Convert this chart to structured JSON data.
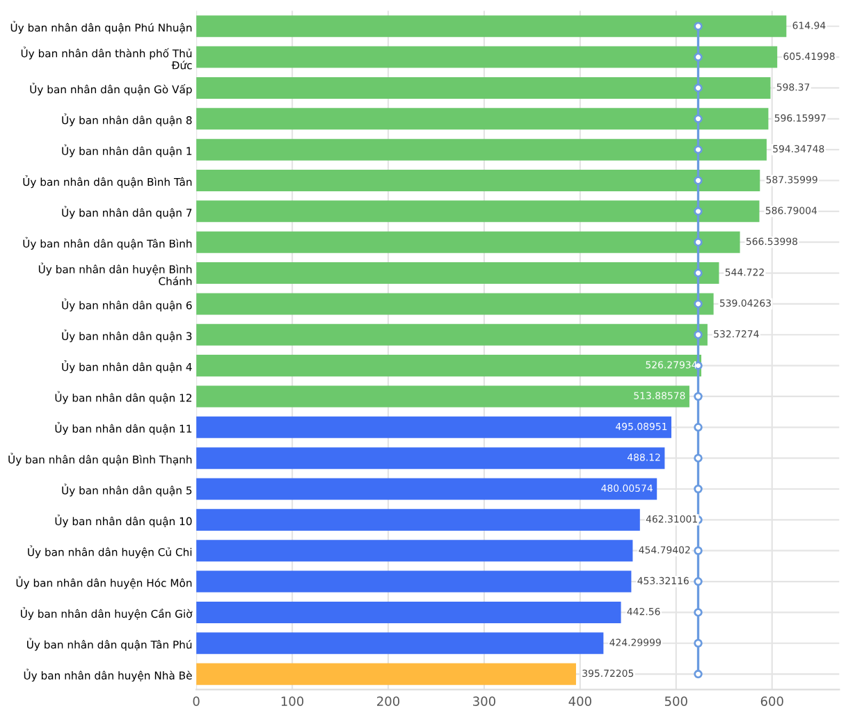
{
  "chart_data": {
    "type": "bar",
    "orientation": "horizontal",
    "categories": [
      "Ủy ban nhân dân quận Phú Nhuận",
      "Ủy ban nhân dân thành phố Thủ Đức",
      "Ủy ban nhân dân quận Gò Vấp",
      "Ủy ban nhân dân quận 8",
      "Ủy ban nhân dân quận 1",
      "Ủy ban nhân dân quận Bình Tân",
      "Ủy ban nhân dân quận 7",
      "Ủy ban nhân dân quận Tân Bình",
      "Ủy ban nhân dân huyện Bình Chánh",
      "Ủy ban nhân dân quận 6",
      "Ủy ban nhân dân quận 3",
      "Ủy ban nhân dân quận 4",
      "Ủy ban nhân dân quận 12",
      "Ủy ban nhân dân quận 11",
      "Ủy ban nhân dân quận Bình Thạnh",
      "Ủy ban nhân dân quận 5",
      "Ủy ban nhân dân quận 10",
      "Ủy ban nhân dân huyện Củ Chi",
      "Ủy ban nhân dân huyện Hóc Môn",
      "Ủy ban nhân dân huyện Cần Giờ",
      "Ủy ban nhân dân quận Tân Phú",
      "Ủy ban nhân dân huyện Nhà Bè"
    ],
    "series": [
      {
        "values": [
          614.94,
          605.41998,
          598.37,
          596.15997,
          594.34748,
          587.35999,
          586.79004,
          566.53998,
          544.722,
          539.04263,
          532.7274,
          526.27934,
          513.88578,
          495.08951,
          488.12,
          480.00574,
          462.31001,
          454.79402,
          453.32116,
          442.56,
          424.29999,
          395.72205
        ],
        "colors": [
          "#6cc86c",
          "#6cc86c",
          "#6cc86c",
          "#6cc86c",
          "#6cc86c",
          "#6cc86c",
          "#6cc86c",
          "#6cc86c",
          "#6cc86c",
          "#6cc86c",
          "#6cc86c",
          "#6cc86c",
          "#6cc86c",
          "#3e6ef5",
          "#3e6ef5",
          "#3e6ef5",
          "#3e6ef5",
          "#3e6ef5",
          "#3e6ef5",
          "#3e6ef5",
          "#3e6ef5",
          "#ffb93e"
        ],
        "value_labels": [
          "614.94",
          "605.41998",
          "598.37",
          "596.15997",
          "594.34748",
          "587.35999",
          "586.79004",
          "566.53998",
          "544.722",
          "539.04263",
          "532.7274",
          "526.27934",
          "513.88578",
          "495.08951",
          "488.12",
          "480.00574",
          "462.31001",
          "454.79402",
          "453.32116",
          "442.56",
          "424.29999",
          "395.72205"
        ]
      },
      {
        "type": "line",
        "color": "#6a9be0",
        "marker": "circle",
        "values": [
          523,
          523,
          523,
          523,
          523,
          523,
          523,
          523,
          523,
          523,
          523,
          523,
          523,
          523,
          523,
          523,
          523,
          523,
          523,
          523,
          523,
          523
        ]
      }
    ],
    "xlim": [
      0,
      670
    ],
    "xticks": [
      0,
      100,
      200,
      300,
      400,
      500,
      600
    ],
    "grid": true
  }
}
